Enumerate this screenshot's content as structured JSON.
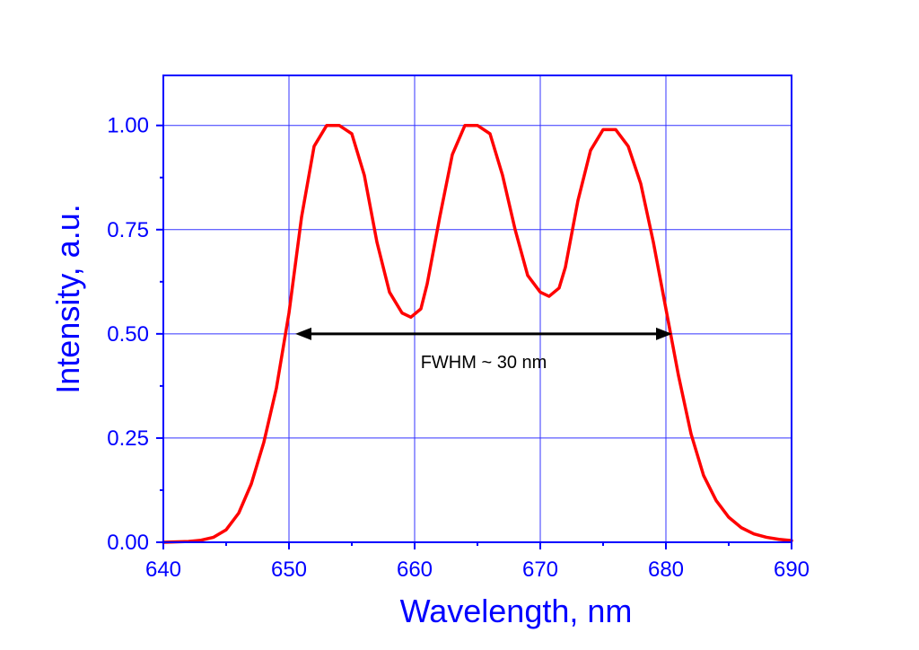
{
  "chart_data": {
    "type": "line",
    "title": "",
    "xlabel": "Wavelength, nm",
    "ylabel": "Intensity, a.u.",
    "xlim": [
      640,
      690
    ],
    "ylim": [
      0,
      1.12
    ],
    "x_ticks": [
      640,
      650,
      660,
      670,
      680,
      690
    ],
    "x_tick_labels": [
      "640",
      "650",
      "660",
      "670",
      "680",
      "690"
    ],
    "y_ticks": [
      0,
      0.25,
      0.5,
      0.75,
      1.0
    ],
    "y_tick_labels": [
      "0.00",
      "0.25",
      "0.50",
      "0.75",
      "1.00"
    ],
    "grid": true,
    "legend": "none",
    "series": [
      {
        "x": [
          640,
          642,
          643,
          644,
          645,
          646,
          647,
          648,
          649,
          650,
          651,
          652,
          653,
          654,
          655,
          656,
          657,
          658,
          659,
          659.7,
          660.5,
          661,
          662,
          663,
          664,
          665,
          666,
          667,
          668,
          669,
          670,
          670.7,
          671.5,
          672,
          673,
          674,
          675,
          676,
          677,
          678,
          679,
          680,
          681,
          682,
          683,
          684,
          685,
          686,
          687,
          688,
          689,
          690
        ],
        "y": [
          0.0,
          0.002,
          0.005,
          0.012,
          0.03,
          0.07,
          0.14,
          0.24,
          0.37,
          0.55,
          0.78,
          0.95,
          1.0,
          1.0,
          0.98,
          0.88,
          0.72,
          0.6,
          0.55,
          0.54,
          0.56,
          0.62,
          0.78,
          0.93,
          1.0,
          1.0,
          0.98,
          0.88,
          0.75,
          0.64,
          0.6,
          0.59,
          0.61,
          0.66,
          0.82,
          0.94,
          0.99,
          0.99,
          0.95,
          0.86,
          0.72,
          0.56,
          0.4,
          0.26,
          0.16,
          0.1,
          0.06,
          0.035,
          0.02,
          0.012,
          0.007,
          0.004
        ]
      }
    ],
    "annotations": [
      {
        "type": "double-arrow",
        "from": [
          650.5,
          0.5
        ],
        "to": [
          680.5,
          0.5
        ],
        "text": "FWHM ~ 30 nm"
      }
    ],
    "colors": {
      "axis": "#0000ff",
      "grid": "#3333ff",
      "curve": "#ff0000",
      "annotation": "#000000"
    }
  }
}
